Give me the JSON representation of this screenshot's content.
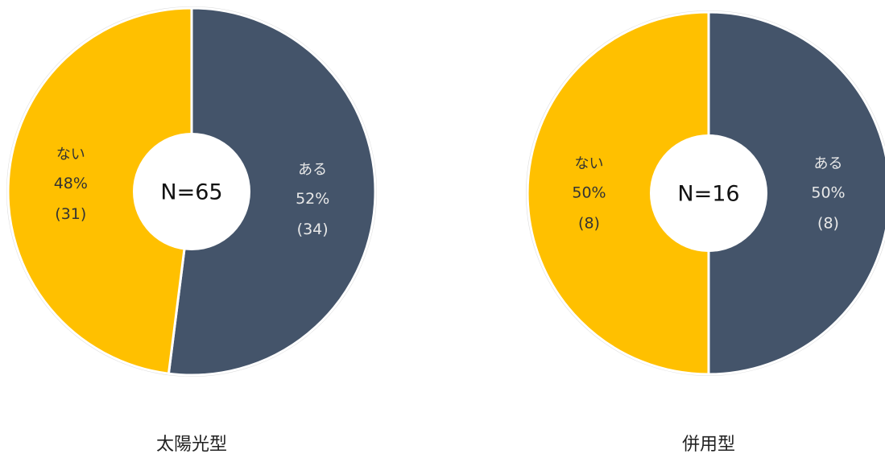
{
  "chart_data": [
    {
      "type": "pie",
      "title": "太陽光型",
      "center_label": "N=65",
      "categories": [
        "ある",
        "ない"
      ],
      "values": [
        52,
        48
      ],
      "value_labels": [
        "52%",
        "48%"
      ],
      "counts": [
        34,
        31
      ],
      "count_labels": [
        "(34)",
        "(31)"
      ],
      "colors": [
        "#44546a",
        "#ffc000"
      ],
      "label_colors": [
        "#e8e8e8",
        "#333333"
      ]
    },
    {
      "type": "pie",
      "title": "併用型",
      "center_label": "N=16",
      "categories": [
        "ある",
        "ない"
      ],
      "values": [
        50,
        50
      ],
      "value_labels": [
        "50%",
        "50%"
      ],
      "counts": [
        8,
        8
      ],
      "count_labels": [
        "(8)",
        "(8)"
      ],
      "colors": [
        "#44546a",
        "#ffc000"
      ],
      "label_colors": [
        "#e8e8e8",
        "#333333"
      ]
    }
  ]
}
